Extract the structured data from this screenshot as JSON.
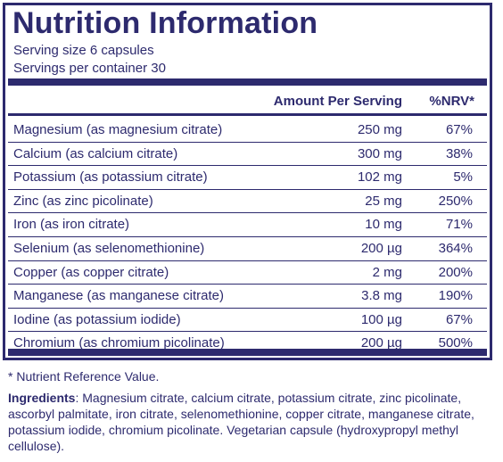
{
  "panel": {
    "title": "Nutrition Information",
    "serving_size": "Serving size  6 capsules",
    "servings_per_container": "Servings per container  30",
    "header": {
      "amount": "Amount Per Serving",
      "nrv": "%NRV*"
    },
    "rows": [
      {
        "nutrient": "Magnesium (as magnesium citrate)",
        "amount": "250 mg",
        "nrv": "67%"
      },
      {
        "nutrient": "Calcium (as calcium citrate)",
        "amount": "300 mg",
        "nrv": "38%"
      },
      {
        "nutrient": "Potassium (as potassium citrate)",
        "amount": "102 mg",
        "nrv": "5%"
      },
      {
        "nutrient": "Zinc (as zinc picolinate)",
        "amount": "25 mg",
        "nrv": "250%"
      },
      {
        "nutrient": "Iron (as iron citrate)",
        "amount": "10 mg",
        "nrv": "71%"
      },
      {
        "nutrient": "Selenium (as selenomethionine)",
        "amount": "200 µg",
        "nrv": "364%"
      },
      {
        "nutrient": "Copper (as copper citrate)",
        "amount": "2 mg",
        "nrv": "200%"
      },
      {
        "nutrient": "Manganese (as manganese citrate)",
        "amount": "3.8 mg",
        "nrv": "190%"
      },
      {
        "nutrient": "Iodine (as potassium iodide)",
        "amount": "100 µg",
        "nrv": "67%"
      },
      {
        "nutrient": "Chromium (as chromium picolinate)",
        "amount": "200 µg",
        "nrv": "500%"
      }
    ]
  },
  "footnote": "* Nutrient Reference Value.",
  "ingredients": {
    "label": "Ingredients",
    "text": ": Magnesium citrate, calcium citrate, potassium citrate, zinc picolinate, ascorbyl palmitate, iron citrate, selenomethionine, copper citrate, manganese citrate, potassium iodide, chromium picolinate. Vegetarian capsule (hydroxypropyl methyl cellulose)."
  },
  "colors": {
    "ink": "#2d2a6e",
    "background": "#ffffff"
  }
}
